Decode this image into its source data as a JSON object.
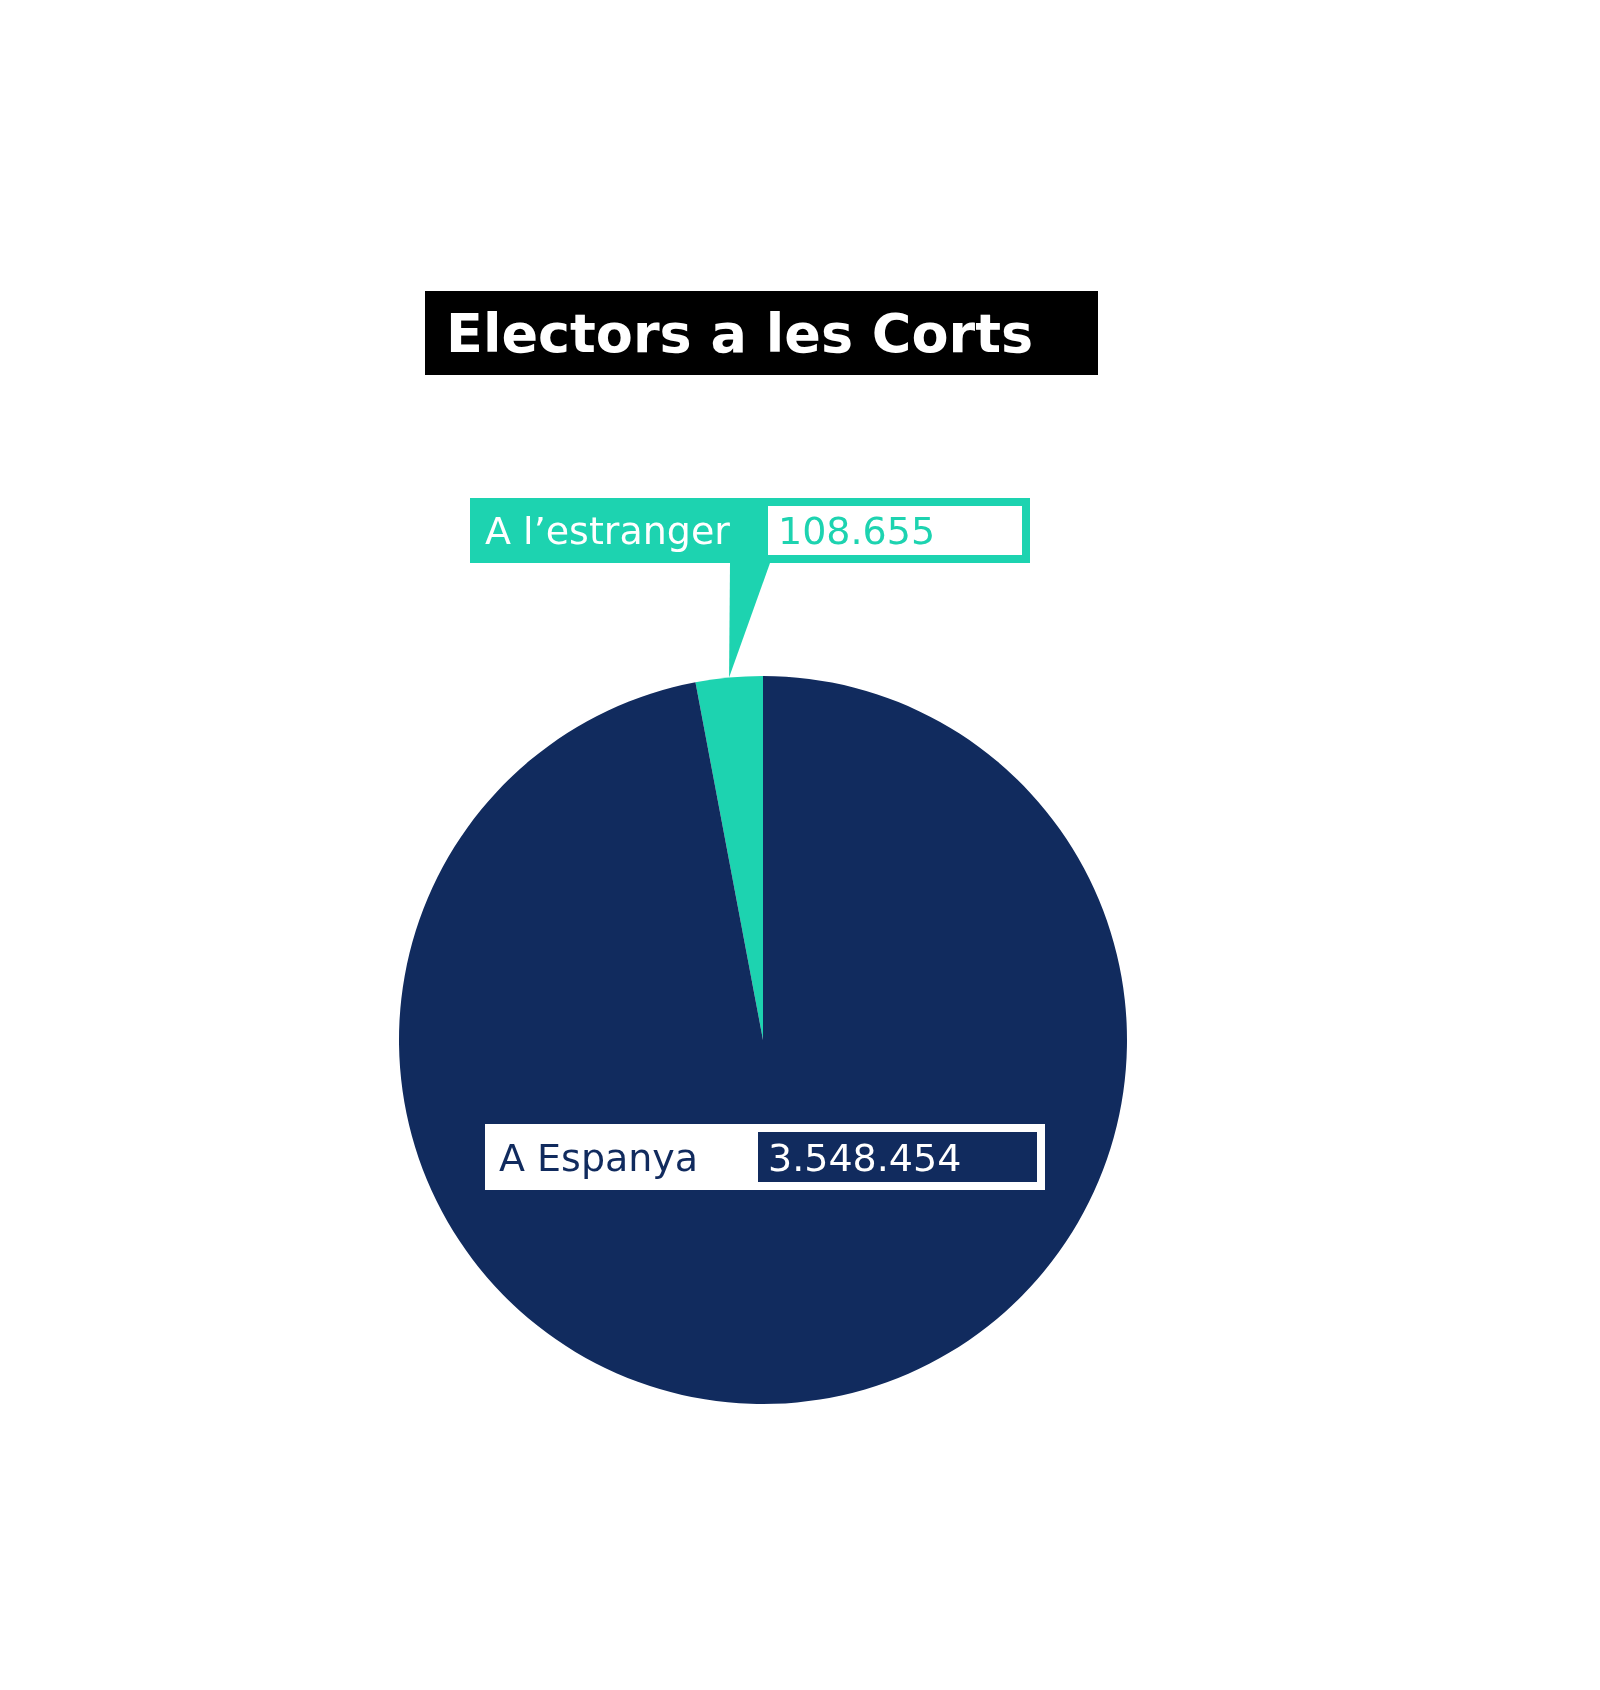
{
  "chart_data": {
    "type": "pie",
    "title": "Electors a les Corts",
    "categories": [
      "A l’estranger",
      "A Espanya"
    ],
    "values": [
      108655,
      3548454
    ],
    "value_labels": [
      "108.655",
      "3.548.454"
    ],
    "colors": [
      "#1dd3b0",
      "#112b5e"
    ]
  }
}
